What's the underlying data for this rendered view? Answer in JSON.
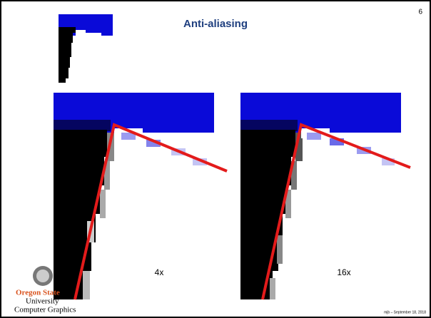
{
  "slide": {
    "number": "6",
    "title": "Anti-aliasing",
    "panels": [
      {
        "label": "4x"
      },
      {
        "label": "16x"
      }
    ],
    "logo": {
      "line1": "Oregon State",
      "line2": "University",
      "line3": "Computer Graphics"
    },
    "footer": "mjb – September 18, 2018"
  }
}
